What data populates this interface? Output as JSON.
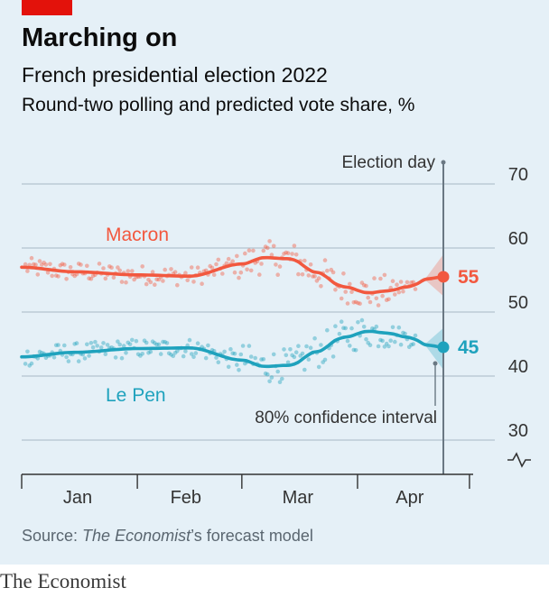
{
  "header": {
    "title": "Marching on",
    "subtitle": "French presidential election 2022",
    "subsubtitle": "Round-two polling and predicted vote share, %"
  },
  "footer": {
    "source_prefix": "Source: ",
    "source_italic": "The Economist",
    "source_suffix": "’s forecast model",
    "brand": "The Economist"
  },
  "colors": {
    "background": "#e5f0f7",
    "macron": "#f2583f",
    "lepen": "#1fa2bd",
    "tag": "#e3120b"
  },
  "chart_data": {
    "type": "line",
    "xlabel": "",
    "ylabel": "",
    "x_domain": [
      "2022-01-01",
      "2022-04-24"
    ],
    "ylim": [
      30,
      70
    ],
    "y_ticks": [
      30,
      40,
      50,
      60,
      70
    ],
    "y_axis_break": true,
    "grid": true,
    "x_ticks": [
      "Jan",
      "Feb",
      "Mar",
      "Apr"
    ],
    "x_tick_dates": [
      "2022-01-16",
      "2022-02-14",
      "2022-03-16",
      "2022-04-15"
    ],
    "month_boundaries": [
      "2022-01-01",
      "2022-02-01",
      "2022-03-01",
      "2022-04-01",
      "2022-05-01"
    ],
    "election_day": {
      "label": "Election day",
      "date": "2022-04-24"
    },
    "confidence_interval_label": "80% confidence interval",
    "series": [
      {
        "name": "Macron",
        "end_label": "55",
        "end_value": 55.5,
        "trend": [
          [
            "2022-01-01",
            57
          ],
          [
            "2022-01-15",
            56.3
          ],
          [
            "2022-02-01",
            55.8
          ],
          [
            "2022-02-15",
            55.6
          ],
          [
            "2022-03-01",
            57.5
          ],
          [
            "2022-03-07",
            58.5
          ],
          [
            "2022-03-14",
            58.3
          ],
          [
            "2022-03-21",
            56.2
          ],
          [
            "2022-03-28",
            54
          ],
          [
            "2022-04-04",
            53
          ],
          [
            "2022-04-09",
            53.3
          ],
          [
            "2022-04-15",
            54
          ],
          [
            "2022-04-20",
            55.2
          ],
          [
            "2022-04-24",
            55.5
          ]
        ],
        "ci_end": [
          52.5,
          59
        ]
      },
      {
        "name": "Le Pen",
        "end_label": "45",
        "end_value": 44.5,
        "trend": [
          [
            "2022-01-01",
            43
          ],
          [
            "2022-01-15",
            43.7
          ],
          [
            "2022-02-01",
            44.3
          ],
          [
            "2022-02-15",
            44.4
          ],
          [
            "2022-03-01",
            42.5
          ],
          [
            "2022-03-07",
            41.5
          ],
          [
            "2022-03-14",
            41.7
          ],
          [
            "2022-03-21",
            43.8
          ],
          [
            "2022-03-28",
            46
          ],
          [
            "2022-04-04",
            47
          ],
          [
            "2022-04-09",
            46.7
          ],
          [
            "2022-04-15",
            46
          ],
          [
            "2022-04-20",
            44.8
          ],
          [
            "2022-04-24",
            44.5
          ]
        ],
        "ci_end": [
          41,
          47.5
        ]
      }
    ]
  }
}
